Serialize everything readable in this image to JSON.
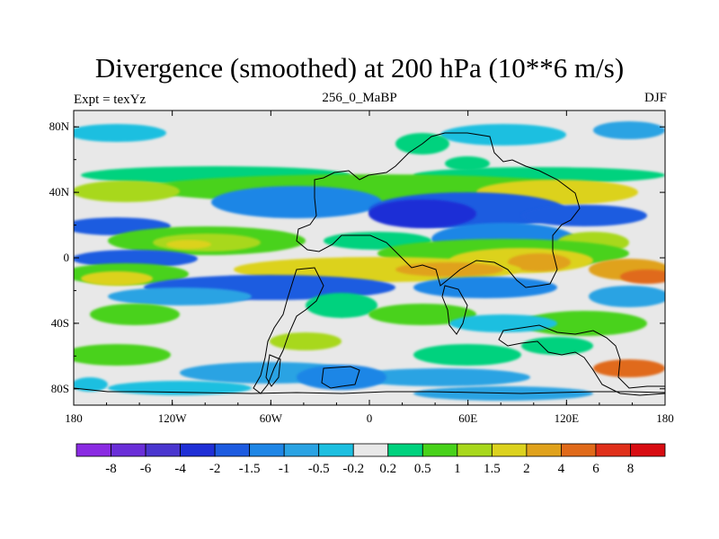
{
  "title": "Divergence (smoothed) at 200 hPa (10**6 m/s)",
  "left_label": "Expt = texYz",
  "center_label": "256_0_MaBP",
  "right_label": "DJF",
  "x_ticks": [
    "180",
    "120W",
    "60W",
    "0",
    "60E",
    "120E",
    "180"
  ],
  "y_ticks": [
    "80N",
    "40N",
    "0",
    "40S",
    "80S"
  ],
  "colorbar": {
    "levels": [
      "-8",
      "-6",
      "-4",
      "-2",
      "-1.5",
      "-1",
      "-0.5",
      "-0.2",
      "0.2",
      "0.5",
      "1",
      "1.5",
      "2",
      "4",
      "6",
      "8"
    ],
    "colors": [
      "#8a2be2",
      "#6a2ed8",
      "#4a36cf",
      "#1f2fd6",
      "#1d5be0",
      "#1f86e6",
      "#2aa3e3",
      "#1dbfe0",
      "#e8e8e8",
      "#00d27e",
      "#48d21a",
      "#a8d81c",
      "#dcd21e",
      "#e0a21c",
      "#e06a1a",
      "#e0301a",
      "#d80c12"
    ]
  },
  "chart_data": {
    "type": "heatmap",
    "title": "Divergence (smoothed) at 200 hPa (10**6 m/s)",
    "xlim": [
      -180,
      180
    ],
    "ylim": [
      -90,
      90
    ],
    "field_bands": [
      {
        "lat": 70,
        "category": "weak convergence (-0.5)"
      },
      {
        "lat": 50,
        "category": "divergence (0.5 to 1)"
      },
      {
        "lat": 38,
        "category": "divergence (1.5 to 2)"
      },
      {
        "lat": 22,
        "category": "convergence (-2 to -4)"
      },
      {
        "lat": 8,
        "category": "divergence (1 to 2)"
      },
      {
        "lat": 0,
        "category": "convergence (-2)"
      },
      {
        "lat": -10,
        "category": "divergence (2 to 6)"
      },
      {
        "lat": -22,
        "category": "convergence (-1 to -2)"
      },
      {
        "lat": -42,
        "category": "divergence (0.5 to 1.5)"
      },
      {
        "lat": -55,
        "category": "convergence (-0.5 to -1)"
      },
      {
        "lat": -78,
        "category": "convergence (-0.5)"
      }
    ]
  }
}
